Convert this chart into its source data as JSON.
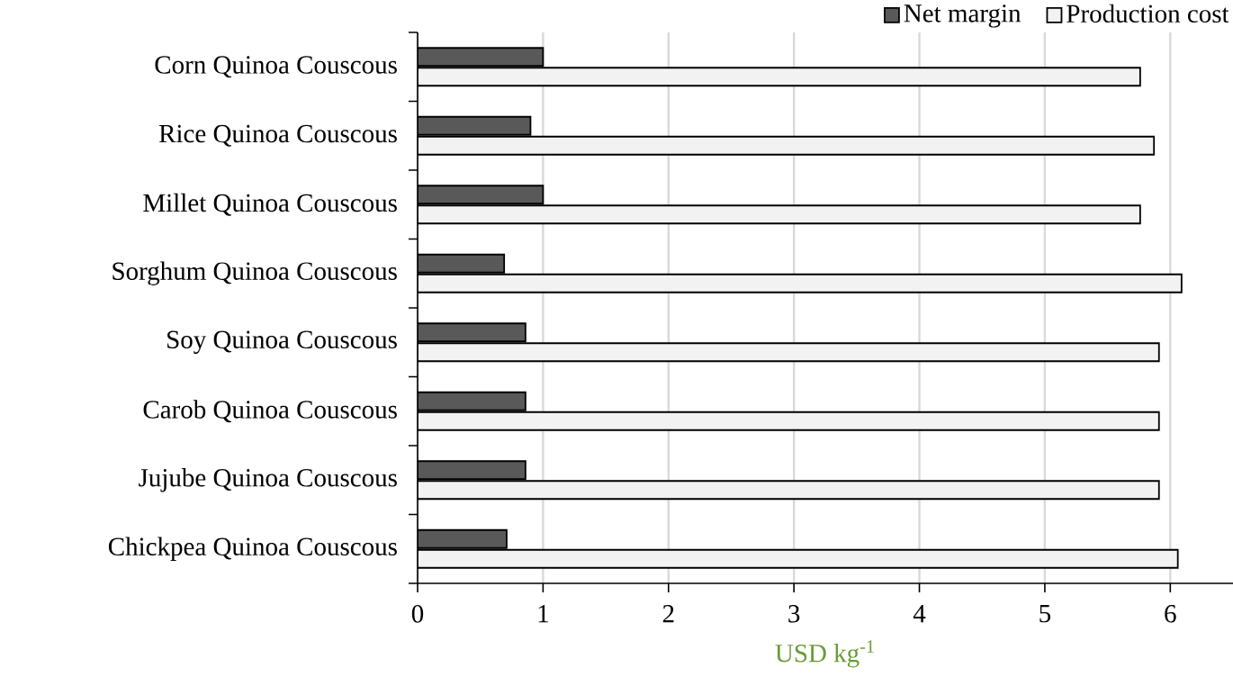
{
  "chart_data": {
    "type": "bar",
    "orientation": "horizontal",
    "categories": [
      "Corn Quinoa Couscous",
      "Rice Quinoa Couscous",
      "Millet Quinoa Couscous",
      "Sorghum Quinoa Couscous",
      "Soy Quinoa Couscous",
      "Carob Quinoa Couscous",
      "Jujube Quinoa Couscous",
      "Chickpea Quinoa Couscous"
    ],
    "series": [
      {
        "name": "Net margin",
        "color": "#595959",
        "values": [
          1.0,
          0.9,
          1.0,
          0.69,
          0.86,
          0.86,
          0.86,
          0.71
        ]
      },
      {
        "name": "Production cost",
        "color": "#f2f2f2",
        "values": [
          5.76,
          5.87,
          5.76,
          6.09,
          5.91,
          5.91,
          5.91,
          6.06
        ]
      }
    ],
    "xlabel": "USD kg$^{-1}$",
    "xlim": [
      0,
      6.5
    ],
    "xticks": [
      0,
      1,
      2,
      3,
      4,
      5,
      6
    ],
    "grid": "x",
    "legend": "top right"
  }
}
